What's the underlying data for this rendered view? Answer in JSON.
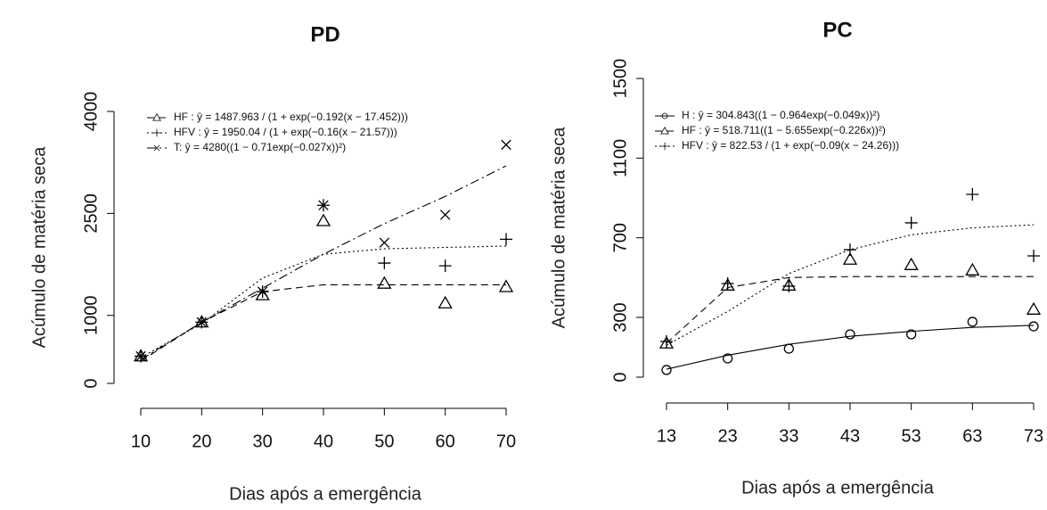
{
  "chart_data": [
    {
      "type": "line",
      "title": "PD",
      "x_label": "Dias após a emergência",
      "y_label": "Acúmulo de matéria seca",
      "x": [
        10,
        20,
        30,
        40,
        50,
        60,
        70
      ],
      "xlim": [
        10,
        70
      ],
      "xticks": [
        10,
        20,
        30,
        40,
        50,
        60,
        70
      ],
      "ylim": [
        0,
        4000
      ],
      "yticks": [
        0,
        1000,
        2500,
        4000
      ],
      "series": [
        {
          "name": "HF : ŷ = 1487.963 / (1 + exp(−0.192(x − 17.452)))",
          "color": "#000000",
          "marker": "triangle",
          "dash": "dashed",
          "values": [
            400,
            900,
            1300,
            2390,
            1470,
            1180,
            1420
          ],
          "fit": [
            330,
            900,
            1350,
            1450,
            1450,
            1450,
            1450
          ]
        },
        {
          "name": "HFV : ŷ = 1950.04 / (1 + exp(−0.16(x − 21.57)))",
          "color": "#000000",
          "marker": "plus",
          "dash": "dotted",
          "values": [
            400,
            900,
            1350,
            2620,
            1770,
            1730,
            2120
          ],
          "fit": [
            380,
            880,
            1550,
            1900,
            1980,
            2000,
            2020
          ]
        },
        {
          "name": "T: ŷ = 4280((1 − 0.71exp(−0.027x))²)",
          "color": "#000000",
          "marker": "x",
          "dash": "dashdot",
          "values": [
            400,
            900,
            1350,
            2620,
            2070,
            2480,
            3510
          ],
          "fit": [
            350,
            900,
            1400,
            1900,
            2350,
            2750,
            3200
          ]
        }
      ]
    },
    {
      "type": "line",
      "title": "PC",
      "x_label": "Dias após a emergência",
      "y_label": "Acúmulo de matéria seca",
      "x": [
        13,
        23,
        33,
        43,
        53,
        63,
        73
      ],
      "xlim": [
        13,
        73
      ],
      "xticks": [
        13,
        23,
        33,
        43,
        53,
        63,
        73
      ],
      "ylim": [
        0,
        1500
      ],
      "yticks": [
        0,
        300,
        700,
        1100,
        1500
      ],
      "series": [
        {
          "name": "H : ŷ = 304.843((1 − 0.964exp(−0.049x))²)",
          "color": "#000000",
          "marker": "circle",
          "dash": "solid",
          "values": [
            36,
            94,
            143,
            215,
            215,
            278,
            255
          ],
          "fit": [
            40,
            110,
            165,
            205,
            230,
            250,
            260
          ]
        },
        {
          "name": "HF : ŷ = 518.711((1 − 5.655exp(−0.226x))²)",
          "color": "#000000",
          "marker": "triangle",
          "dash": "dashed",
          "values": [
            170,
            461,
            461,
            591,
            564,
            537,
            340
          ],
          "fit": [
            170,
            450,
            500,
            505,
            505,
            505,
            505
          ]
        },
        {
          "name": "HFV : ŷ = 822.53 / (1 + exp(−0.09(x − 24.26)))",
          "color": "#000000",
          "marker": "plus",
          "dash": "dotted",
          "values": [
            179,
            470,
            457,
            640,
            775,
            918,
            609
          ],
          "fit": [
            160,
            330,
            520,
            640,
            715,
            750,
            765
          ]
        }
      ]
    }
  ]
}
